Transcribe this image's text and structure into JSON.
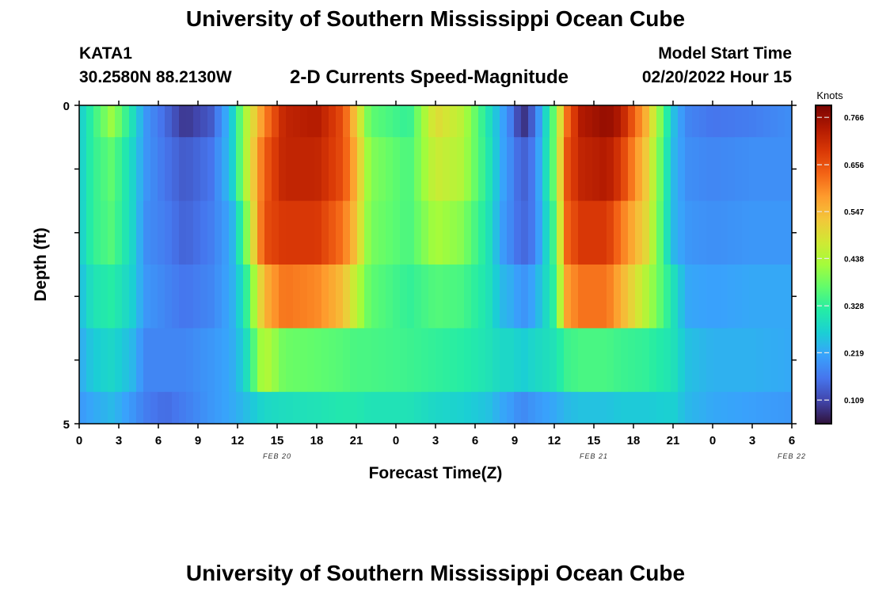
{
  "header": {
    "title": "University of Southern Mississippi Ocean Cube",
    "title_repeat": "University of Southern Mississippi Ocean Cube",
    "station_id": "KATA1",
    "station_coords": "30.2580N  88.2130W",
    "product": "2-D Currents Speed-Magnitude",
    "model_start_label": "Model Start Time",
    "model_start_value": "02/20/2022 Hour 15"
  },
  "chart_data": {
    "type": "heatmap",
    "xlabel": "Forecast Time(Z)",
    "ylabel": "Depth (ft)",
    "ylim": [
      0,
      5
    ],
    "y_tick_labels": [
      "0",
      "5"
    ],
    "x_tick_labels": [
      "0",
      "3",
      "6",
      "9",
      "12",
      "15",
      "18",
      "21",
      "0",
      "3",
      "6",
      "9",
      "12",
      "15",
      "18",
      "21",
      "0",
      "3",
      "6"
    ],
    "date_labels": [
      {
        "label": "FEB 20",
        "hour": 15
      },
      {
        "label": "FEB 21",
        "hour": 39
      },
      {
        "label": "FEB 22",
        "hour": 54
      }
    ],
    "x_range_hours": [
      0,
      54
    ],
    "colorbar": {
      "unit": "Knots",
      "range": [
        0.054,
        0.794
      ],
      "tick_values": [
        0.109,
        0.219,
        0.328,
        0.438,
        0.547,
        0.656,
        0.766
      ],
      "colors": [
        "#30123b",
        "#4145ab",
        "#4675ed",
        "#39a2fc",
        "#1bcfd4",
        "#24eca6",
        "#61fc6c",
        "#a4fc3b",
        "#d1e834",
        "#f3c63a",
        "#fe9b2d",
        "#f36315",
        "#d93806",
        "#b11901",
        "#7a0402"
      ]
    },
    "depth_layers_ft": [
      0,
      0.5,
      1.5,
      2.5,
      3.5,
      4.5
    ],
    "time_keypoints_hours": [
      0,
      1,
      2.5,
      4,
      5,
      6.5,
      8,
      10,
      11.5,
      12.5,
      14,
      15.5,
      18,
      20,
      21,
      22,
      25,
      27,
      29,
      31,
      32,
      33,
      33.5,
      34.5,
      36,
      37,
      38,
      40,
      41,
      43,
      45,
      46,
      48,
      51,
      54
    ],
    "speed_knots": [
      [
        0.26,
        0.33,
        0.42,
        0.3,
        0.2,
        0.15,
        0.09,
        0.13,
        0.25,
        0.42,
        0.6,
        0.72,
        0.74,
        0.66,
        0.52,
        0.37,
        0.33,
        0.5,
        0.45,
        0.3,
        0.22,
        0.15,
        0.07,
        0.15,
        0.38,
        0.63,
        0.74,
        0.77,
        0.74,
        0.55,
        0.25,
        0.18,
        0.16,
        0.17,
        0.19
      ],
      [
        0.26,
        0.33,
        0.37,
        0.28,
        0.2,
        0.16,
        0.13,
        0.16,
        0.25,
        0.42,
        0.64,
        0.72,
        0.72,
        0.66,
        0.55,
        0.4,
        0.35,
        0.47,
        0.44,
        0.31,
        0.22,
        0.17,
        0.13,
        0.17,
        0.38,
        0.66,
        0.72,
        0.74,
        0.69,
        0.52,
        0.24,
        0.19,
        0.18,
        0.19,
        0.19
      ],
      [
        0.26,
        0.33,
        0.36,
        0.28,
        0.19,
        0.17,
        0.14,
        0.17,
        0.22,
        0.36,
        0.66,
        0.69,
        0.69,
        0.62,
        0.53,
        0.39,
        0.35,
        0.43,
        0.4,
        0.3,
        0.21,
        0.17,
        0.14,
        0.17,
        0.35,
        0.64,
        0.69,
        0.69,
        0.62,
        0.5,
        0.24,
        0.2,
        0.19,
        0.2,
        0.2
      ],
      [
        0.24,
        0.3,
        0.32,
        0.27,
        0.2,
        0.18,
        0.16,
        0.18,
        0.22,
        0.3,
        0.55,
        0.62,
        0.6,
        0.54,
        0.45,
        0.37,
        0.33,
        0.36,
        0.35,
        0.3,
        0.24,
        0.22,
        0.19,
        0.22,
        0.33,
        0.58,
        0.62,
        0.62,
        0.56,
        0.44,
        0.3,
        0.22,
        0.21,
        0.22,
        0.22
      ],
      [
        0.22,
        0.26,
        0.28,
        0.24,
        0.18,
        0.18,
        0.18,
        0.2,
        0.22,
        0.27,
        0.45,
        0.38,
        0.37,
        0.36,
        0.35,
        0.35,
        0.34,
        0.33,
        0.32,
        0.3,
        0.28,
        0.28,
        0.26,
        0.28,
        0.3,
        0.34,
        0.35,
        0.35,
        0.34,
        0.33,
        0.3,
        0.25,
        0.23,
        0.23,
        0.22
      ],
      [
        0.2,
        0.22,
        0.24,
        0.2,
        0.17,
        0.15,
        0.17,
        0.2,
        0.22,
        0.24,
        0.28,
        0.29,
        0.3,
        0.31,
        0.31,
        0.3,
        0.3,
        0.28,
        0.27,
        0.25,
        0.22,
        0.2,
        0.18,
        0.2,
        0.22,
        0.24,
        0.25,
        0.25,
        0.26,
        0.26,
        0.27,
        0.24,
        0.22,
        0.21,
        0.2
      ]
    ]
  }
}
